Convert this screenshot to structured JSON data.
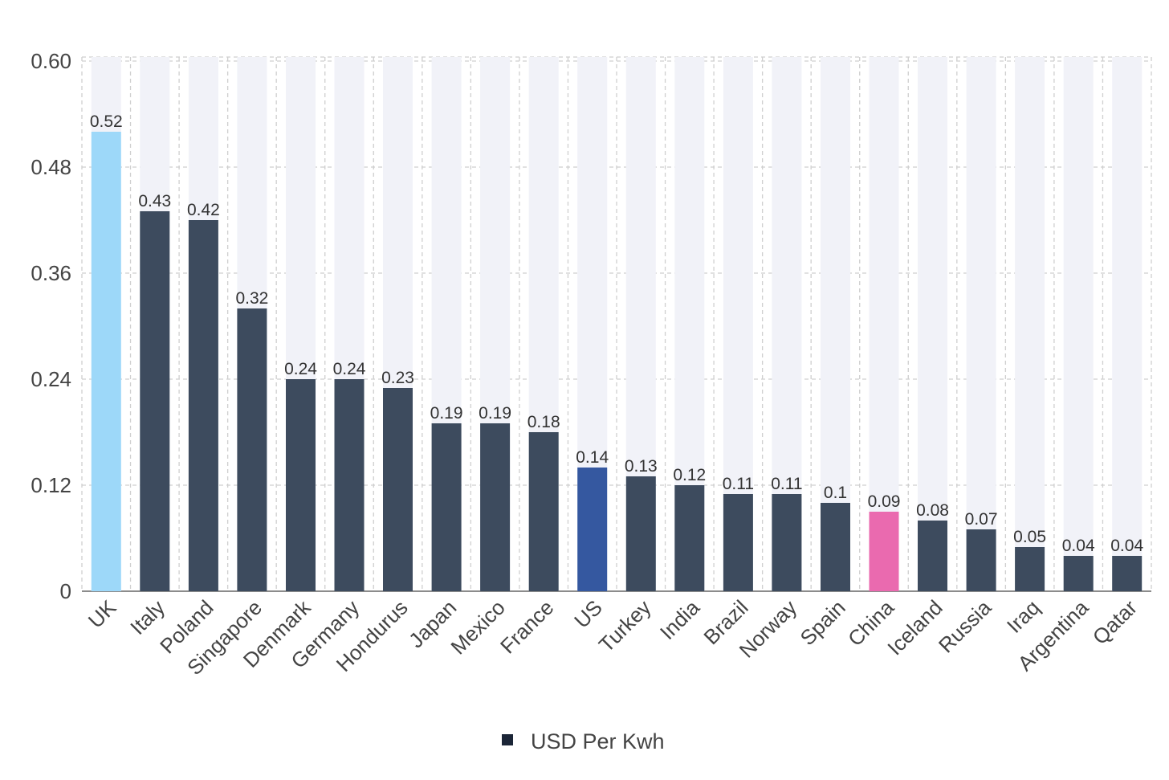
{
  "chart_data": {
    "type": "bar",
    "title": "",
    "xlabel": "",
    "ylabel": "",
    "ylim": [
      0,
      0.6
    ],
    "yticks": [
      0,
      0.12,
      0.24,
      0.36,
      0.48,
      0.6
    ],
    "ytick_labels": [
      "0",
      "0.12",
      "0.24",
      "0.36",
      "0.48",
      "0.60"
    ],
    "grid": true,
    "categories": [
      "UK",
      "Italy",
      "Poland",
      "Singapore",
      "Denmark",
      "Germany",
      "Hondurus",
      "Japan",
      "Mexico",
      "France",
      "US",
      "Turkey",
      "India",
      "Brazil",
      "Norway",
      "Spain",
      "China",
      "Iceland",
      "Russia",
      "Iraq",
      "Argentina",
      "Qatar"
    ],
    "values": [
      0.52,
      0.43,
      0.42,
      0.32,
      0.24,
      0.24,
      0.23,
      0.19,
      0.19,
      0.18,
      0.14,
      0.13,
      0.12,
      0.11,
      0.11,
      0.1,
      0.09,
      0.08,
      0.07,
      0.05,
      0.04,
      0.04
    ],
    "value_labels": [
      "0.52",
      "0.43",
      "0.42",
      "0.32",
      "0.24",
      "0.24",
      "0.23",
      "0.19",
      "0.19",
      "0.18",
      "0.14",
      "0.13",
      "0.12",
      "0.11",
      "0.11",
      "0.1",
      "0.09",
      "0.08",
      "0.07",
      "0.05",
      "0.04",
      "0.04"
    ],
    "bar_colors": [
      "#9dd8f9",
      "#3d4b5e",
      "#3d4b5e",
      "#3d4b5e",
      "#3d4b5e",
      "#3d4b5e",
      "#3d4b5e",
      "#3d4b5e",
      "#3d4b5e",
      "#3d4b5e",
      "#3558a0",
      "#3d4b5e",
      "#3d4b5e",
      "#3d4b5e",
      "#3d4b5e",
      "#3d4b5e",
      "#ea6aaf",
      "#3d4b5e",
      "#3d4b5e",
      "#3d4b5e",
      "#3d4b5e",
      "#3d4b5e"
    ],
    "track_color": "#f1f2f8",
    "legend": {
      "position": "bottom-center",
      "entries": [
        {
          "label": "USD Per Kwh",
          "color": "#1b2537"
        }
      ]
    }
  }
}
